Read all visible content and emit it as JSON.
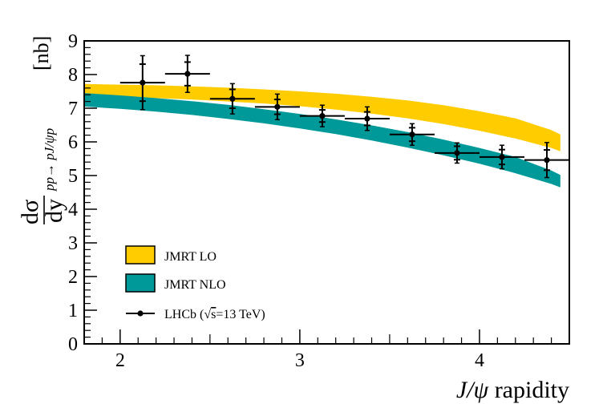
{
  "chart_data": {
    "type": "line",
    "xlabel_italic": "J/ψ",
    "xlabel_rest": " rapidity",
    "ylabel": {
      "num": "dσ",
      "den": "dy",
      "sub": "pp→ pJ/ψp",
      "unit": "[nb]"
    },
    "xlim": [
      1.8,
      4.5
    ],
    "ylim": [
      0,
      9
    ],
    "x_ticks": [
      2,
      3,
      4
    ],
    "y_ticks": [
      0,
      1,
      2,
      3,
      4,
      5,
      6,
      7,
      8,
      9
    ],
    "series": [
      {
        "name": "JMRT LO",
        "kind": "band",
        "color": "#ffcc00",
        "x": [
          1.8,
          2.0,
          2.2,
          2.4,
          2.6,
          2.8,
          3.0,
          3.2,
          3.4,
          3.6,
          3.8,
          4.0,
          4.2,
          4.4,
          4.45
        ],
        "low": [
          7.35,
          7.33,
          7.3,
          7.26,
          7.2,
          7.14,
          7.06,
          6.96,
          6.84,
          6.7,
          6.53,
          6.33,
          6.1,
          5.82,
          5.72
        ],
        "high": [
          7.72,
          7.7,
          7.68,
          7.65,
          7.61,
          7.56,
          7.5,
          7.43,
          7.34,
          7.23,
          7.09,
          6.91,
          6.7,
          6.35,
          6.22
        ]
      },
      {
        "name": "JMRT NLO",
        "kind": "band",
        "color": "#009999",
        "x": [
          1.8,
          2.0,
          2.2,
          2.4,
          2.6,
          2.8,
          3.0,
          3.2,
          3.4,
          3.6,
          3.8,
          4.0,
          4.2,
          4.4,
          4.45
        ],
        "low": [
          7.05,
          6.98,
          6.9,
          6.8,
          6.68,
          6.55,
          6.4,
          6.23,
          6.04,
          5.83,
          5.6,
          5.35,
          5.07,
          4.75,
          4.65
        ],
        "high": [
          7.45,
          7.38,
          7.3,
          7.21,
          7.1,
          6.97,
          6.83,
          6.67,
          6.49,
          6.29,
          6.07,
          5.82,
          5.55,
          5.15,
          5.02
        ]
      },
      {
        "name": "LHCb (√s=13 TeV)",
        "legend_prefix": "LHCb (",
        "legend_root": "√",
        "legend_s": "s",
        "legend_suffix": "=13 TeV)",
        "kind": "points",
        "color": "#000000",
        "x": [
          2.125,
          2.375,
          2.625,
          2.875,
          3.125,
          3.375,
          3.625,
          3.875,
          4.125,
          4.375
        ],
        "x_halfwidth": 0.125,
        "y": [
          7.76,
          8.02,
          7.28,
          7.04,
          6.77,
          6.69,
          6.22,
          5.67,
          5.55,
          5.46
        ],
        "err_stat": [
          0.55,
          0.35,
          0.28,
          0.22,
          0.18,
          0.2,
          0.2,
          0.2,
          0.22,
          0.3
        ],
        "err_total": [
          0.8,
          0.55,
          0.45,
          0.38,
          0.32,
          0.35,
          0.32,
          0.3,
          0.35,
          0.52
        ]
      }
    ]
  }
}
